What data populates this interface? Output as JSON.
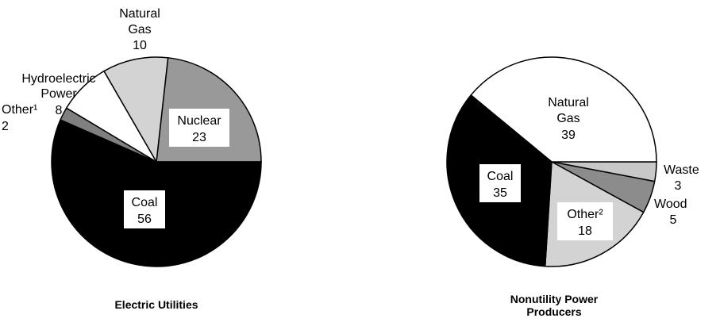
{
  "chart_data": [
    {
      "type": "pie",
      "title": "Electric Utilities",
      "slices": [
        {
          "label": "Nuclear",
          "value": 23,
          "color": "#999999"
        },
        {
          "label": "Coal",
          "value": 56,
          "color": "#000000"
        },
        {
          "label": "Other¹",
          "value": 2,
          "color": "#808080"
        },
        {
          "label": "Hydroelectric Power",
          "value": 8,
          "color": "#ffffff"
        },
        {
          "label": "Natural Gas",
          "value": 10,
          "color": "#d3d3d3"
        }
      ],
      "unit": "percent"
    },
    {
      "type": "pie",
      "title": "Nonutility Power Producers",
      "slices": [
        {
          "label": "Waste",
          "value": 3,
          "color": "#c8c8c8"
        },
        {
          "label": "Wood",
          "value": 5,
          "color": "#8c8c8c"
        },
        {
          "label": "Other²",
          "value": 18,
          "color": "#d3d3d3"
        },
        {
          "label": "Coal",
          "value": 35,
          "color": "#000000"
        },
        {
          "label": "Natural Gas",
          "value": 39,
          "color": "#ffffff"
        }
      ],
      "unit": "percent"
    }
  ]
}
